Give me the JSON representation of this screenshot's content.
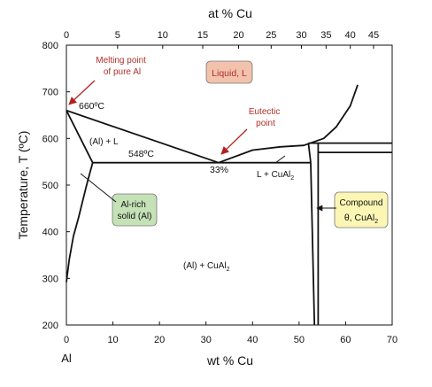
{
  "chart_data": {
    "type": "line",
    "title": "",
    "xlabel": "wt % Cu",
    "ylabel": "Temperature, T (ºC)",
    "top_xlabel": "at % Cu",
    "corner_label": "Al",
    "xlim": [
      0,
      70
    ],
    "ylim": [
      200,
      800
    ],
    "x_ticks": [
      0,
      10,
      20,
      30,
      40,
      50,
      60,
      70
    ],
    "y_ticks": [
      200,
      300,
      400,
      500,
      600,
      700,
      800
    ],
    "top_ticks": [
      {
        "at": 0,
        "wt": 0
      },
      {
        "at": 5,
        "wt": 11
      },
      {
        "at": 10,
        "wt": 20.7
      },
      {
        "at": 15,
        "wt": 29.3
      },
      {
        "at": 20,
        "wt": 37
      },
      {
        "at": 25,
        "wt": 44
      },
      {
        "at": 30,
        "wt": 50.5
      },
      {
        "at": 35,
        "wt": 55.8
      },
      {
        "at": 40,
        "wt": 61
      },
      {
        "at": 45,
        "wt": 66
      }
    ],
    "series": [
      {
        "values": [
          [
            0,
            660
          ],
          [
            32.7,
            548
          ]
        ]
      },
      {
        "values": [
          [
            32.7,
            548
          ],
          [
            40,
            575
          ],
          [
            46,
            582
          ],
          [
            51,
            585
          ],
          [
            55.3,
            600
          ],
          [
            58,
            625
          ],
          [
            61,
            670
          ],
          [
            62.6,
            715
          ]
        ]
      },
      {
        "values": [
          [
            0,
            660
          ],
          [
            5.65,
            548
          ]
        ]
      },
      {
        "values": [
          [
            0,
            292
          ],
          [
            0.6,
            340
          ],
          [
            1.5,
            390
          ],
          [
            2.6,
            430
          ],
          [
            3.6,
            470
          ],
          [
            4.6,
            510
          ],
          [
            5.65,
            548
          ]
        ]
      },
      {
        "values": [
          [
            5.65,
            548
          ],
          [
            52.5,
            548
          ]
        ]
      },
      {
        "values": [
          [
            52,
            590
          ],
          [
            70,
            590
          ]
        ]
      },
      {
        "values": [
          [
            52.5,
            548
          ],
          [
            52,
            590
          ]
        ]
      },
      {
        "values": [
          [
            52.5,
            548
          ],
          [
            53.3,
            200
          ]
        ]
      },
      {
        "values": [
          [
            54.1,
            590
          ],
          [
            54.1,
            200
          ]
        ]
      },
      {
        "values": [
          [
            54.1,
            570
          ],
          [
            70,
            570
          ]
        ]
      }
    ],
    "annotations": {
      "melting_point": "Melting point\nof pure Al",
      "liquid": "Liquid, L",
      "eutectic": "Eutectic\npoint",
      "t660": "660ºC",
      "t548": "548ºC",
      "al_l": "(Al) + L",
      "pct33": "33%",
      "l_cual2": "L + CuAl",
      "al_rich": "Al-rich\nsolid (Al)",
      "al_cual2": "(Al) + CuAl",
      "compound": "Compound",
      "theta": "θ, CuAl",
      "sub2": "2"
    },
    "colors": {
      "liquid_box": "#f2c2ad",
      "al_rich_box": "#c4e2b6",
      "compound_box": "#fbf6b4",
      "arrow": "#b22222",
      "line": "#111111"
    }
  }
}
